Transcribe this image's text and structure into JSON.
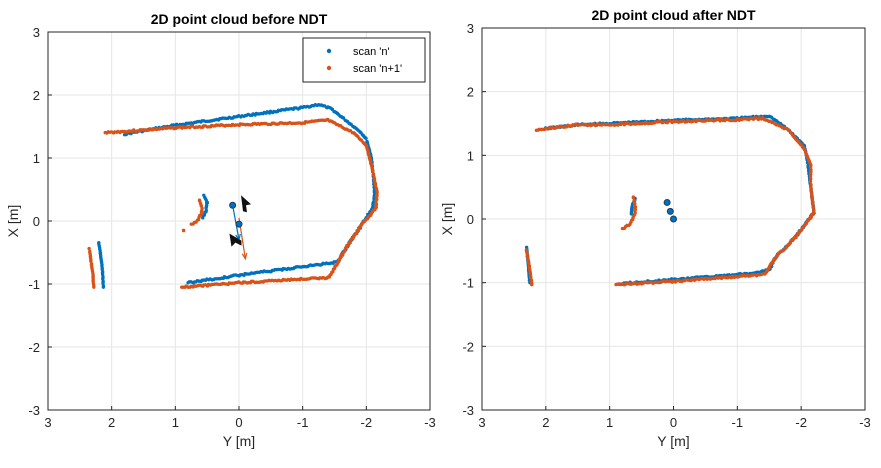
{
  "colors": {
    "scan_n": "#0072BD",
    "scan_n1": "#D95319",
    "grid": "#e6e6e6",
    "axis": "#262626"
  },
  "chart_data": [
    {
      "type": "scatter",
      "title": "2D point cloud before NDT",
      "xlabel": "Y [m]",
      "ylabel": "X [m]",
      "xlim": [
        3,
        -3
      ],
      "ylim": [
        -3,
        3
      ],
      "x_reversed": true,
      "grid": true,
      "legend_position": "top-right",
      "xticks": [
        "3",
        "2",
        "1",
        "0",
        "-1",
        "-2",
        "-3"
      ],
      "yticks": [
        "3",
        "2",
        "1",
        "0",
        "-1",
        "-2",
        "-3"
      ],
      "series": [
        {
          "name": "scan 'n'",
          "color": "#0072BD",
          "paths": [
            [
              [
                1.8,
                1.38
              ],
              [
                1.0,
                1.52
              ],
              [
                0,
                1.66
              ],
              [
                -1.0,
                1.8
              ],
              [
                -1.25,
                1.85
              ],
              [
                -1.45,
                1.78
              ],
              [
                -1.9,
                1.42
              ],
              [
                -2.0,
                1.3
              ],
              [
                -2.08,
                1.0
              ],
              [
                -2.12,
                0.6
              ],
              [
                -2.13,
                0.4
              ],
              [
                -2.1,
                0.2
              ],
              [
                -1.9,
                -0.1
              ],
              [
                -1.7,
                -0.4
              ],
              [
                -1.55,
                -0.65
              ],
              [
                -1.2,
                -0.7
              ],
              [
                0,
                -0.86
              ],
              [
                0.8,
                -0.98
              ]
            ],
            [
              [
                2.2,
                -0.35
              ],
              [
                2.15,
                -0.7
              ],
              [
                2.13,
                -1.05
              ]
            ],
            [
              [
                0.55,
                0.4
              ],
              [
                0.5,
                0.3
              ],
              [
                0.52,
                0.15
              ],
              [
                0.57,
                0.05
              ]
            ]
          ]
        },
        {
          "name": "scan 'n+1'",
          "color": "#D95319",
          "paths": [
            [
              [
                2.1,
                1.4
              ],
              [
                1.0,
                1.48
              ],
              [
                0,
                1.53
              ],
              [
                -1.0,
                1.56
              ],
              [
                -1.4,
                1.6
              ],
              [
                -1.8,
                1.4
              ],
              [
                -2.0,
                1.2
              ],
              [
                -2.1,
                0.8
              ],
              [
                -2.17,
                0.45
              ],
              [
                -2.15,
                0.2
              ],
              [
                -1.9,
                -0.1
              ],
              [
                -1.7,
                -0.4
              ],
              [
                -1.5,
                -0.75
              ],
              [
                -1.4,
                -0.9
              ],
              [
                -0.5,
                -0.95
              ],
              [
                0,
                -0.98
              ],
              [
                0.9,
                -1.05
              ]
            ],
            [
              [
                2.35,
                -0.45
              ],
              [
                2.3,
                -0.8
              ],
              [
                2.28,
                -1.05
              ]
            ],
            [
              [
                0.62,
                0.33
              ],
              [
                0.58,
                0.2
              ],
              [
                0.6,
                0.1
              ],
              [
                0.65,
                0.0
              ],
              [
                0.75,
                -0.05
              ]
            ],
            [
              [
                0.87,
                -0.15
              ]
            ]
          ]
        }
      ],
      "markers": [
        {
          "x": 0.1,
          "y": 0.25,
          "color": "#0072BD"
        },
        {
          "x": 0,
          "y": -0.05,
          "color": "#0072BD"
        }
      ],
      "arrows": [
        {
          "from": [
            0.1,
            0.25
          ],
          "to": [
            0,
            -0.3
          ],
          "color": "#0072BD"
        },
        {
          "from": [
            0,
            0.05
          ],
          "to": [
            -0.1,
            -0.6
          ],
          "color": "#D95319"
        }
      ]
    },
    {
      "type": "scatter",
      "title": "2D point cloud after NDT",
      "xlabel": "Y [m]",
      "ylabel": "X [m]",
      "xlim": [
        3,
        -3
      ],
      "ylim": [
        -3,
        3
      ],
      "x_reversed": true,
      "grid": true,
      "xticks": [
        "3",
        "2",
        "1",
        "0",
        "-1",
        "-2",
        "-3"
      ],
      "yticks": [
        "3",
        "2",
        "1",
        "0",
        "-1",
        "-2",
        "-3"
      ],
      "series": [
        {
          "name": "scan 'n'",
          "color": "#0072BD",
          "paths": [
            [
              [
                2.0,
                1.42
              ],
              [
                1.5,
                1.48
              ],
              [
                1.0,
                1.5
              ],
              [
                0,
                1.55
              ],
              [
                -1.0,
                1.58
              ],
              [
                -1.5,
                1.62
              ],
              [
                -1.8,
                1.4
              ],
              [
                -2.05,
                1.15
              ],
              [
                -2.1,
                0.9
              ],
              [
                -2.15,
                0.5
              ],
              [
                -2.2,
                0.1
              ],
              [
                -1.9,
                -0.3
              ],
              [
                -1.6,
                -0.6
              ],
              [
                -1.5,
                -0.8
              ],
              [
                -1.3,
                -0.85
              ],
              [
                0,
                -0.95
              ],
              [
                0.85,
                -1.02
              ]
            ],
            [
              [
                2.3,
                -0.45
              ],
              [
                2.27,
                -0.8
              ],
              [
                2.25,
                -1.0
              ]
            ],
            [
              [
                0.6,
                0.32
              ],
              [
                0.65,
                0.2
              ],
              [
                0.66,
                0.08
              ]
            ]
          ]
        },
        {
          "name": "scan 'n+1'",
          "color": "#D95319",
          "paths": [
            [
              [
                2.15,
                1.4
              ],
              [
                1.5,
                1.48
              ],
              [
                1.0,
                1.48
              ],
              [
                0,
                1.53
              ],
              [
                -1.0,
                1.56
              ],
              [
                -1.4,
                1.58
              ],
              [
                -1.8,
                1.4
              ],
              [
                -2.05,
                1.1
              ],
              [
                -2.15,
                0.85
              ],
              [
                -2.15,
                0.5
              ],
              [
                -2.2,
                0.1
              ],
              [
                -1.9,
                -0.3
              ],
              [
                -1.6,
                -0.6
              ],
              [
                -1.45,
                -0.85
              ],
              [
                -1.3,
                -0.88
              ],
              [
                0,
                -0.98
              ],
              [
                0.9,
                -1.03
              ]
            ],
            [
              [
                2.3,
                -0.5
              ],
              [
                2.25,
                -0.8
              ],
              [
                2.22,
                -1.03
              ]
            ],
            [
              [
                0.63,
                0.35
              ],
              [
                0.6,
                0.2
              ],
              [
                0.6,
                0.1
              ],
              [
                0.65,
                -0.03
              ],
              [
                0.7,
                -0.1
              ],
              [
                0.8,
                -0.15
              ]
            ]
          ]
        }
      ],
      "markers": [
        {
          "x": 0.1,
          "y": 0.26,
          "color": "#0072BD"
        },
        {
          "x": 0.05,
          "y": 0.12,
          "color": "#0072BD"
        },
        {
          "x": 0,
          "y": 0.0,
          "color": "#0072BD"
        }
      ]
    }
  ],
  "legend": {
    "items": [
      "scan 'n'",
      "scan 'n+1'"
    ]
  }
}
